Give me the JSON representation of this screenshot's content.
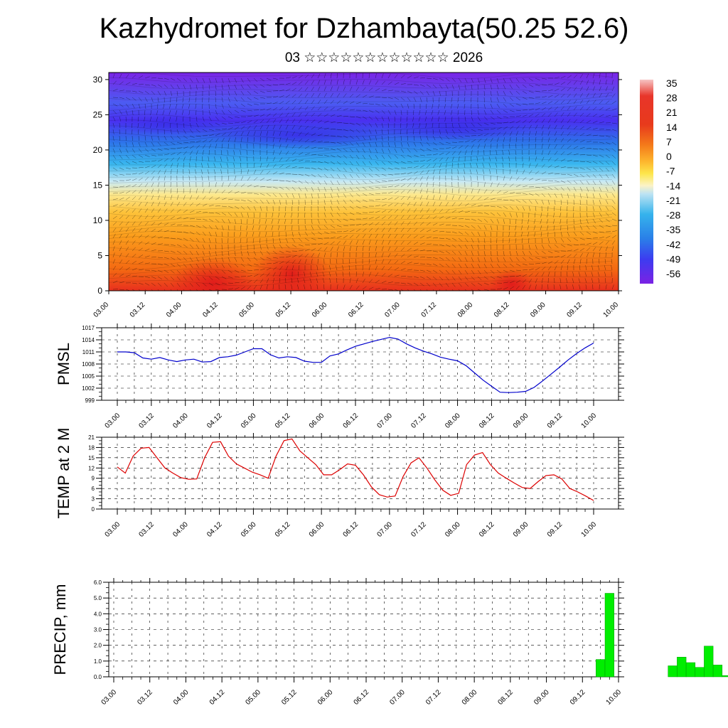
{
  "title": "Kazhydromet for Dzhambayta(50.25 52.6)",
  "subtitle": "03 ☆☆☆☆☆☆☆☆☆☆☆☆ 2026",
  "chart_data": [
    {
      "name": "cross-section",
      "type": "heatmap",
      "description_axis": "height",
      "ylim": [
        0,
        31
      ],
      "y_ticks": [
        0,
        5,
        10,
        15,
        20,
        25,
        30
      ],
      "x_ticks": [
        "03.00",
        "03.12",
        "04.00",
        "04.12",
        "05.00",
        "05.12",
        "06.00",
        "06.12",
        "07.00",
        "07.12",
        "08.00",
        "08.12",
        "09.00",
        "09.12",
        "10.00"
      ],
      "colorbar_labels": [
        "35",
        "28",
        "21",
        "14",
        "7",
        "0",
        "-7",
        "-14",
        "-21",
        "-28",
        "-35",
        "-42",
        "-49",
        "-56"
      ],
      "colors": [
        "#f4b2b2",
        "#e8352a",
        "#f27a18",
        "#fdb62e",
        "#fde64b",
        "#f9f5c0",
        "#bde3f3",
        "#35b3ec",
        "#2a7fe8",
        "#3c3cf0",
        "#7b22e4"
      ]
    },
    {
      "name": "pmsl",
      "type": "line",
      "ylabel": "PMSL",
      "ylim": [
        999,
        1017
      ],
      "y_ticks": [
        999,
        1002,
        1005,
        1008,
        1011,
        1014,
        1017
      ],
      "x_ticks": [
        "03.00",
        "03.12",
        "04.00",
        "04.12",
        "05.00",
        "05.12",
        "06.00",
        "06.12",
        "07.00",
        "07.12",
        "08.00",
        "08.12",
        "09.00",
        "09.12",
        "10.00"
      ],
      "values": [
        1011,
        1011,
        1010.8,
        1009.5,
        1009.2,
        1009.6,
        1009,
        1008.6,
        1009,
        1009.2,
        1008.5,
        1008.6,
        1009.6,
        1009.8,
        1010.2,
        1011,
        1011.8,
        1011.8,
        1010.3,
        1009.5,
        1009.8,
        1009.6,
        1008.7,
        1008.4,
        1008.4,
        1010,
        1010.5,
        1011.5,
        1012.4,
        1013,
        1013.6,
        1014.1,
        1014.6,
        1014.2,
        1013,
        1012,
        1011.2,
        1010.5,
        1009.7,
        1009.2,
        1008.8,
        1007.6,
        1005.8,
        1004,
        1002.5,
        1001,
        1000.9,
        1001,
        1001.2,
        1002.2,
        1003.8,
        1005.5,
        1007.2,
        1009,
        1010.6,
        1012,
        1013.2
      ],
      "series_color": "#0000cc"
    },
    {
      "name": "temp2m",
      "type": "line",
      "ylabel": "TEMP at 2 M",
      "ylim": [
        0,
        21
      ],
      "y_ticks": [
        0,
        3,
        6,
        9,
        12,
        15,
        18,
        21
      ],
      "x_ticks": [
        "03.00",
        "03.12",
        "04.00",
        "04.12",
        "05.00",
        "05.12",
        "06.00",
        "06.12",
        "07.00",
        "07.12",
        "08.00",
        "08.12",
        "09.00",
        "09.12",
        "10.00"
      ],
      "values": [
        12.3,
        10.5,
        15.5,
        17.8,
        18,
        15,
        12,
        10.5,
        9.2,
        8.7,
        8.8,
        15,
        19.5,
        19.7,
        15.5,
        13.2,
        12,
        10.8,
        10,
        9,
        15.5,
        20,
        20.5,
        17,
        15,
        13,
        10,
        10,
        11.5,
        13.2,
        12.8,
        10,
        6.5,
        4.2,
        3.5,
        3.8,
        9.5,
        13.5,
        15,
        12,
        8.5,
        5.5,
        4,
        4.6,
        13,
        15.8,
        16.5,
        13,
        10.5,
        9,
        7.6,
        6.3,
        6,
        8,
        9.8,
        10,
        8.8,
        6,
        5,
        3.8,
        2.5
      ],
      "series_color": "#dd0000"
    },
    {
      "name": "precip",
      "type": "bar",
      "ylabel": "PRECIP, mm",
      "ylim": [
        0,
        6
      ],
      "y_ticks": [
        "0.0",
        "1.0",
        "2.0",
        "3.0",
        "4.0",
        "5.0",
        "6.0"
      ],
      "x_ticks": [
        "03.00",
        "03.12",
        "04.00",
        "04.12",
        "05.00",
        "05.12",
        "06.00",
        "06.12",
        "07.00",
        "07.12",
        "08.00",
        "08.12",
        "09.00",
        "09.12",
        "10.00"
      ],
      "bar_time_hours": [
        162,
        165,
        186,
        189,
        192,
        195,
        198,
        201,
        204,
        207
      ],
      "values": [
        1.1,
        5.3,
        0.7,
        1.25,
        0.9,
        0.6,
        1.95,
        0.75,
        0.08,
        0.02
      ],
      "series_color": "#00ee00"
    }
  ]
}
